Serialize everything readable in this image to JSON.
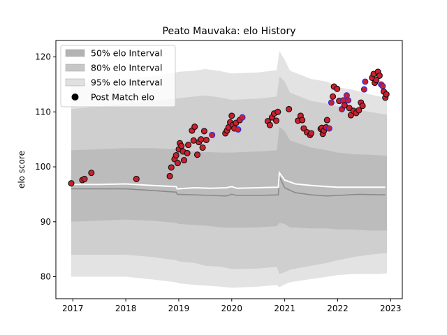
{
  "chart_data": {
    "type": "scatter",
    "title": "Peato Mauvaka: elo History",
    "xlabel": "",
    "ylabel": "elo score",
    "xlim": [
      2016.68,
      2023.22
    ],
    "ylim": [
      76,
      123
    ],
    "x_ticks": [
      2017,
      2018,
      2019,
      2020,
      2021,
      2022,
      2023
    ],
    "y_ticks": [
      80,
      90,
      100,
      110,
      120
    ],
    "grid": false,
    "legend_position": "top-left",
    "legend": [
      {
        "label": "50% elo Interval",
        "kind": "band",
        "color": "#b3b3b3"
      },
      {
        "label": "80% elo Interval",
        "kind": "band",
        "color": "#c7c7c7"
      },
      {
        "label": "95% elo Interval",
        "kind": "band",
        "color": "#e0e0e0"
      },
      {
        "label": "Post Match elo",
        "kind": "marker",
        "color": "#000000"
      }
    ],
    "colors": {
      "band_95": "#e3e3e3",
      "band_80": "#cfcfcf",
      "band_50": "#bcbcbc",
      "median_line": "#8a8a8a",
      "mean_line": "#ffffff",
      "point_fill": "#cc1f2e",
      "point_edge_default": "#111111",
      "point_edge_blue": "#2a2adf"
    },
    "bands": {
      "x": [
        2016.97,
        2017.5,
        2018.0,
        2018.5,
        2018.95,
        2019.0,
        2019.3,
        2019.5,
        2019.8,
        2020.0,
        2020.5,
        2020.85,
        2020.9,
        2021.0,
        2021.1,
        2021.5,
        2021.8,
        2022.0,
        2022.3,
        2022.6,
        2022.8,
        2022.93
      ],
      "p95_hi": [
        115,
        115.5,
        116,
        116.5,
        117.2,
        117.3,
        117.5,
        117.8,
        117.4,
        117.0,
        117.2,
        117.6,
        121.1,
        119.5,
        117.5,
        116.0,
        115.5,
        114.5,
        114.0,
        113.2,
        112.8,
        112.5
      ],
      "p80_hi": [
        110.5,
        111,
        111.5,
        112,
        112.4,
        112.5,
        112.8,
        113.0,
        112.6,
        112.2,
        112.4,
        112.8,
        116.5,
        115.5,
        113.5,
        112.0,
        111.5,
        111.0,
        110.5,
        110.0,
        109.7,
        109.5
      ],
      "p50_hi": [
        103.0,
        103.2,
        103.4,
        103.4,
        103.2,
        103.0,
        102.8,
        102.7,
        102.6,
        102.6,
        102.8,
        103.0,
        107.3,
        106.5,
        104.8,
        103.5,
        103.0,
        102.6,
        102.3,
        102.2,
        102.1,
        102.0
      ],
      "p50_lo": [
        90.0,
        90.2,
        90.4,
        90.2,
        89.8,
        89.6,
        89.4,
        89.3,
        89.0,
        88.9,
        89.0,
        89.2,
        89.8,
        89.6,
        89.0,
        88.8,
        88.8,
        88.6,
        88.6,
        88.4,
        88.4,
        88.4
      ],
      "p80_lo": [
        84.0,
        84.0,
        84.0,
        83.6,
        83.0,
        82.8,
        82.5,
        82.0,
        81.8,
        81.4,
        81.5,
        81.8,
        80.5,
        80.8,
        81.3,
        82.0,
        82.5,
        83.0,
        83.6,
        84.0,
        84.2,
        84.3
      ],
      "p95_lo": [
        80.0,
        80.0,
        80.0,
        79.5,
        79.0,
        78.8,
        78.5,
        78.4,
        78.2,
        78.0,
        78.2,
        78.5,
        78.1,
        78.6,
        79.0,
        79.6,
        80.0,
        80.3,
        80.5,
        80.5,
        80.5,
        80.6
      ]
    },
    "median_line": {
      "x": [
        2016.97,
        2017.5,
        2018.0,
        2018.5,
        2018.95,
        2018.97,
        2019.3,
        2019.6,
        2019.9,
        2020.0,
        2020.1,
        2020.5,
        2020.88,
        2020.9,
        2021.0,
        2021.2,
        2021.5,
        2021.8,
        2022.0,
        2022.4,
        2022.9
      ],
      "y": [
        96.0,
        96.0,
        96.0,
        95.7,
        95.4,
        95.0,
        94.9,
        94.8,
        94.7,
        95.0,
        94.8,
        94.8,
        94.9,
        98.2,
        96.2,
        95.3,
        94.9,
        94.7,
        94.8,
        95.0,
        94.9
      ]
    },
    "mean_line": {
      "x": [
        2016.97,
        2017.5,
        2018.0,
        2018.5,
        2018.95,
        2018.97,
        2019.3,
        2019.6,
        2019.9,
        2020.0,
        2020.1,
        2020.5,
        2020.88,
        2020.9,
        2021.0,
        2021.2,
        2021.5,
        2021.8,
        2022.0,
        2022.4,
        2022.9
      ],
      "y": [
        96.8,
        96.8,
        96.9,
        96.6,
        96.4,
        96.0,
        96.2,
        96.1,
        96.2,
        96.4,
        96.1,
        96.2,
        96.3,
        98.9,
        97.6,
        96.9,
        96.6,
        96.4,
        96.3,
        96.3,
        96.3
      ]
    },
    "points": [
      {
        "x": 2016.97,
        "y": 97.0,
        "edge": "dark"
      },
      {
        "x": 2017.18,
        "y": 97.6,
        "edge": "dark"
      },
      {
        "x": 2017.22,
        "y": 97.8,
        "edge": "dark"
      },
      {
        "x": 2017.35,
        "y": 98.9,
        "edge": "dark"
      },
      {
        "x": 2018.2,
        "y": 97.8,
        "edge": "dark"
      },
      {
        "x": 2018.83,
        "y": 98.3,
        "edge": "dark"
      },
      {
        "x": 2018.86,
        "y": 99.9,
        "edge": "dark"
      },
      {
        "x": 2018.92,
        "y": 101.4,
        "edge": "dark"
      },
      {
        "x": 2018.95,
        "y": 102.1,
        "edge": "dark"
      },
      {
        "x": 2018.98,
        "y": 100.7,
        "edge": "dark"
      },
      {
        "x": 2019.0,
        "y": 103.2,
        "edge": "dark"
      },
      {
        "x": 2019.02,
        "y": 104.3,
        "edge": "dark"
      },
      {
        "x": 2019.05,
        "y": 103.8,
        "edge": "dark"
      },
      {
        "x": 2019.08,
        "y": 102.8,
        "edge": "dark"
      },
      {
        "x": 2019.1,
        "y": 101.2,
        "edge": "dark"
      },
      {
        "x": 2019.16,
        "y": 102.5,
        "edge": "dark"
      },
      {
        "x": 2019.18,
        "y": 104.0,
        "edge": "dark"
      },
      {
        "x": 2019.25,
        "y": 106.6,
        "edge": "dark"
      },
      {
        "x": 2019.28,
        "y": 104.8,
        "edge": "dark"
      },
      {
        "x": 2019.3,
        "y": 107.3,
        "edge": "dark"
      },
      {
        "x": 2019.35,
        "y": 102.2,
        "edge": "dark"
      },
      {
        "x": 2019.38,
        "y": 104.5,
        "edge": "dark"
      },
      {
        "x": 2019.42,
        "y": 105.0,
        "edge": "dark"
      },
      {
        "x": 2019.45,
        "y": 103.5,
        "edge": "dark"
      },
      {
        "x": 2019.48,
        "y": 106.5,
        "edge": "dark"
      },
      {
        "x": 2019.52,
        "y": 104.9,
        "edge": "dark"
      },
      {
        "x": 2019.63,
        "y": 105.8,
        "edge": "blue"
      },
      {
        "x": 2019.88,
        "y": 106.1,
        "edge": "dark"
      },
      {
        "x": 2019.91,
        "y": 106.6,
        "edge": "dark"
      },
      {
        "x": 2019.94,
        "y": 107.2,
        "edge": "dark"
      },
      {
        "x": 2019.97,
        "y": 108.1,
        "edge": "dark"
      },
      {
        "x": 2020.0,
        "y": 109.3,
        "edge": "dark"
      },
      {
        "x": 2020.02,
        "y": 107.6,
        "edge": "dark"
      },
      {
        "x": 2020.05,
        "y": 107.0,
        "edge": "dark"
      },
      {
        "x": 2020.08,
        "y": 108.0,
        "edge": "dark"
      },
      {
        "x": 2020.12,
        "y": 106.8,
        "edge": "blue"
      },
      {
        "x": 2020.15,
        "y": 108.5,
        "edge": "dark"
      },
      {
        "x": 2020.2,
        "y": 109.0,
        "edge": "blue"
      },
      {
        "x": 2020.68,
        "y": 108.3,
        "edge": "dark"
      },
      {
        "x": 2020.72,
        "y": 107.6,
        "edge": "dark"
      },
      {
        "x": 2020.76,
        "y": 109.0,
        "edge": "dark"
      },
      {
        "x": 2020.8,
        "y": 109.7,
        "edge": "dark"
      },
      {
        "x": 2020.84,
        "y": 108.4,
        "edge": "dark"
      },
      {
        "x": 2020.87,
        "y": 110.0,
        "edge": "dark"
      },
      {
        "x": 2021.08,
        "y": 110.5,
        "edge": "dark"
      },
      {
        "x": 2021.25,
        "y": 108.4,
        "edge": "dark"
      },
      {
        "x": 2021.3,
        "y": 109.3,
        "edge": "dark"
      },
      {
        "x": 2021.33,
        "y": 108.5,
        "edge": "dark"
      },
      {
        "x": 2021.36,
        "y": 107.0,
        "edge": "dark"
      },
      {
        "x": 2021.42,
        "y": 106.3,
        "edge": "dark"
      },
      {
        "x": 2021.48,
        "y": 105.8,
        "edge": "dark"
      },
      {
        "x": 2021.5,
        "y": 106.1,
        "edge": "dark"
      },
      {
        "x": 2021.68,
        "y": 106.9,
        "edge": "dark"
      },
      {
        "x": 2021.7,
        "y": 107.1,
        "edge": "dark"
      },
      {
        "x": 2021.72,
        "y": 106.0,
        "edge": "dark"
      },
      {
        "x": 2021.74,
        "y": 106.6,
        "edge": "dark"
      },
      {
        "x": 2021.78,
        "y": 107.2,
        "edge": "dark"
      },
      {
        "x": 2021.8,
        "y": 108.5,
        "edge": "dark"
      },
      {
        "x": 2021.84,
        "y": 107.0,
        "edge": "blue"
      },
      {
        "x": 2021.88,
        "y": 111.7,
        "edge": "blue"
      },
      {
        "x": 2021.91,
        "y": 112.8,
        "edge": "dark"
      },
      {
        "x": 2021.93,
        "y": 114.6,
        "edge": "dark"
      },
      {
        "x": 2021.99,
        "y": 114.2,
        "edge": "dark"
      },
      {
        "x": 2022.03,
        "y": 112.0,
        "edge": "dark"
      },
      {
        "x": 2022.08,
        "y": 110.5,
        "edge": "blue"
      },
      {
        "x": 2022.1,
        "y": 112.1,
        "edge": "blue"
      },
      {
        "x": 2022.13,
        "y": 111.2,
        "edge": "dark"
      },
      {
        "x": 2022.17,
        "y": 113.0,
        "edge": "blue"
      },
      {
        "x": 2022.2,
        "y": 112.1,
        "edge": "blue"
      },
      {
        "x": 2022.22,
        "y": 110.7,
        "edge": "dark"
      },
      {
        "x": 2022.25,
        "y": 109.4,
        "edge": "dark"
      },
      {
        "x": 2022.3,
        "y": 110.2,
        "edge": "dark"
      },
      {
        "x": 2022.35,
        "y": 109.8,
        "edge": "dark"
      },
      {
        "x": 2022.4,
        "y": 110.3,
        "edge": "dark"
      },
      {
        "x": 2022.44,
        "y": 111.7,
        "edge": "dark"
      },
      {
        "x": 2022.47,
        "y": 111.1,
        "edge": "dark"
      },
      {
        "x": 2022.5,
        "y": 114.1,
        "edge": "blue"
      },
      {
        "x": 2022.52,
        "y": 115.5,
        "edge": "blue"
      },
      {
        "x": 2022.65,
        "y": 116.2,
        "edge": "dark"
      },
      {
        "x": 2022.68,
        "y": 116.9,
        "edge": "dark"
      },
      {
        "x": 2022.7,
        "y": 115.3,
        "edge": "dark"
      },
      {
        "x": 2022.73,
        "y": 115.8,
        "edge": "dark"
      },
      {
        "x": 2022.76,
        "y": 117.3,
        "edge": "dark"
      },
      {
        "x": 2022.79,
        "y": 116.6,
        "edge": "dark"
      },
      {
        "x": 2022.82,
        "y": 115.0,
        "edge": "blue"
      },
      {
        "x": 2022.85,
        "y": 114.7,
        "edge": "blue"
      },
      {
        "x": 2022.87,
        "y": 113.7,
        "edge": "dark"
      },
      {
        "x": 2022.9,
        "y": 112.6,
        "edge": "dark"
      },
      {
        "x": 2022.92,
        "y": 113.2,
        "edge": "dark"
      }
    ]
  }
}
